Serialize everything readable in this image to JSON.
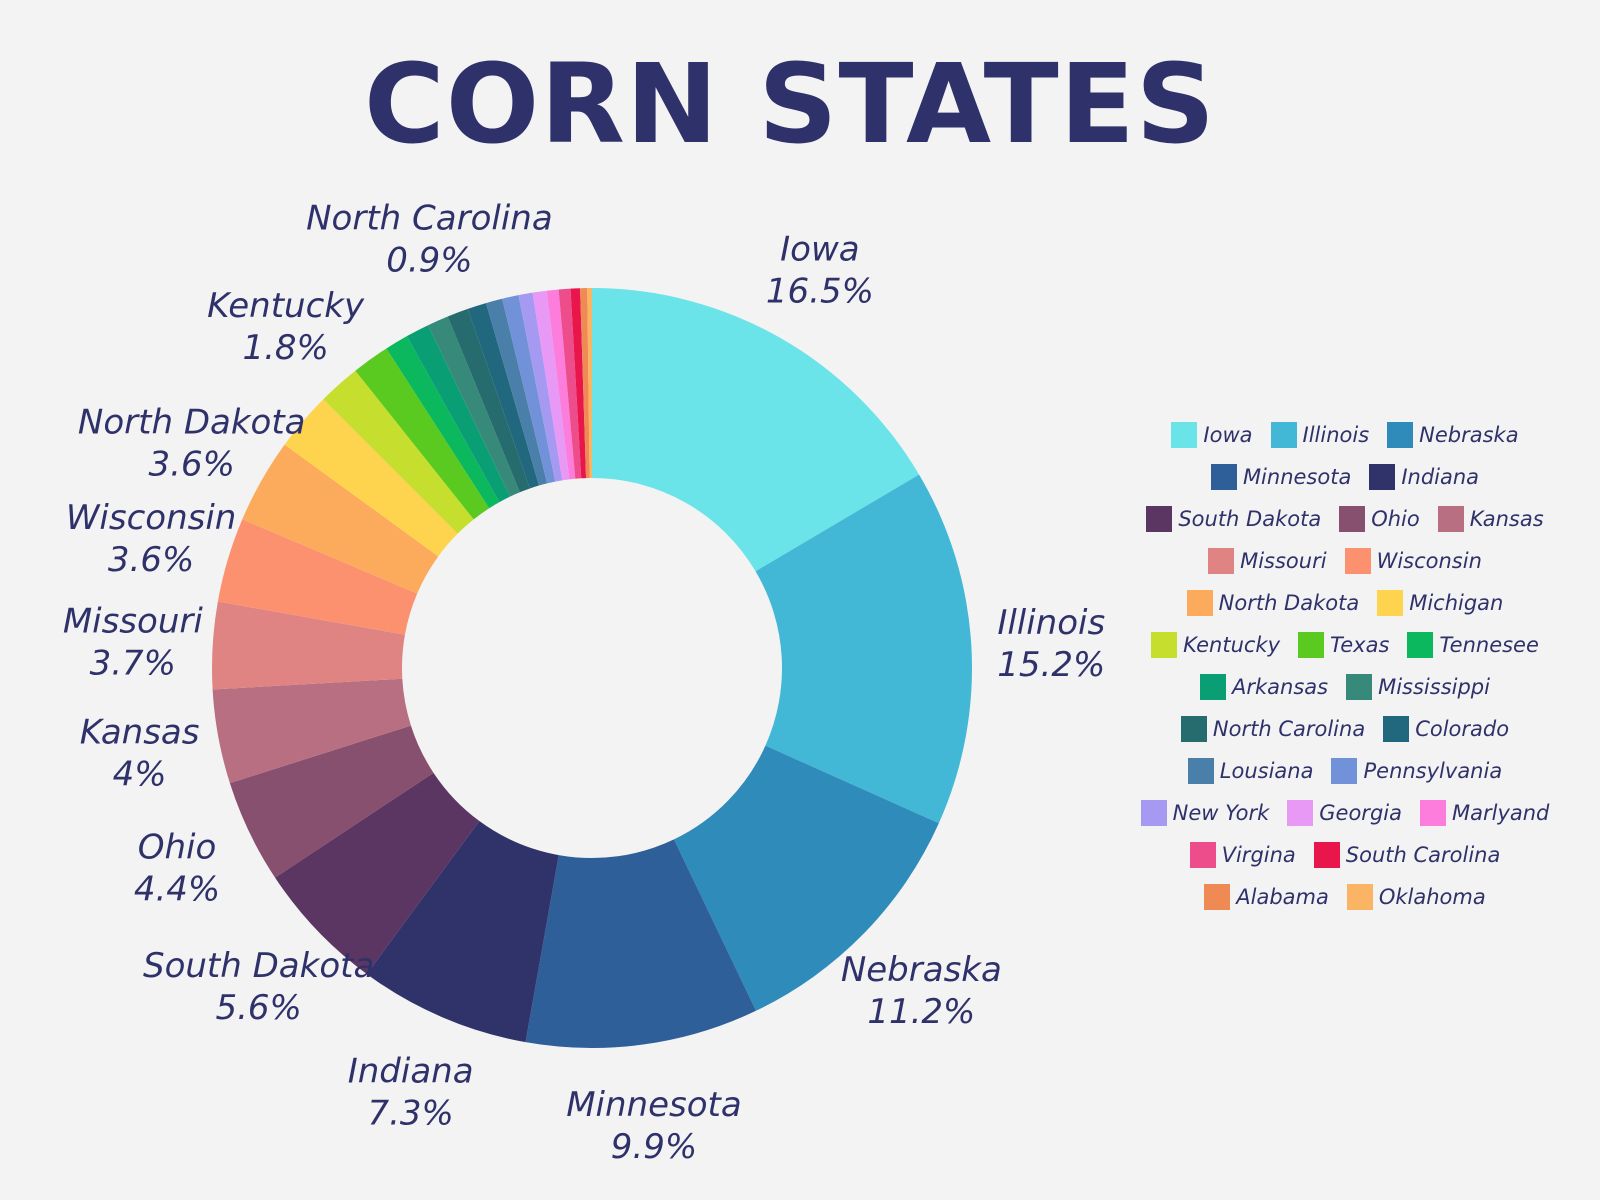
{
  "chart_data": {
    "type": "pie",
    "title": "CORN STATES",
    "legend_position": "right",
    "slices": [
      {
        "name": "Iowa",
        "value": 16.5,
        "color": "#6ae4e8",
        "label": "16.5%"
      },
      {
        "name": "Illinois",
        "value": 15.2,
        "color": "#42b8d6",
        "label": "15.2%"
      },
      {
        "name": "Nebraska",
        "value": 11.2,
        "color": "#2e8bba",
        "label": "11.2%"
      },
      {
        "name": "Minnesota",
        "value": 9.9,
        "color": "#2e5f98",
        "label": "9.9%"
      },
      {
        "name": "Indiana",
        "value": 7.3,
        "color": "#2f336a",
        "label": "7.3%"
      },
      {
        "name": "South Dakota",
        "value": 5.6,
        "color": "#5c3663",
        "label": "5.6%"
      },
      {
        "name": "Ohio",
        "value": 4.4,
        "color": "#87506e",
        "label": "4.4%"
      },
      {
        "name": "Kansas",
        "value": 4.0,
        "color": "#b96f82",
        "label": "4%"
      },
      {
        "name": "Missouri",
        "value": 3.7,
        "color": "#e08383",
        "label": "3.7%"
      },
      {
        "name": "Wisconsin",
        "value": 3.6,
        "color": "#fc9170",
        "label": "3.6%"
      },
      {
        "name": "North Dakota",
        "value": 3.6,
        "color": "#fcab5c",
        "label": "3.6%"
      },
      {
        "name": "Michigan",
        "value": 2.5,
        "color": "#fed44f",
        "label": ""
      },
      {
        "name": "Kentucky",
        "value": 1.8,
        "color": "#c6de2e",
        "label": "1.8%"
      },
      {
        "name": "Texas",
        "value": 1.6,
        "color": "#5ac920",
        "label": ""
      },
      {
        "name": "Tennesee",
        "value": 1.0,
        "color": "#0bb85e",
        "label": ""
      },
      {
        "name": "Arkansas",
        "value": 1.0,
        "color": "#0a9e74",
        "label": ""
      },
      {
        "name": "Mississippi",
        "value": 0.9,
        "color": "#378a7a",
        "label": ""
      },
      {
        "name": "North Carolina",
        "value": 0.9,
        "color": "#266b6d",
        "label": "0.9%"
      },
      {
        "name": "Colorado",
        "value": 0.8,
        "color": "#21687e",
        "label": ""
      },
      {
        "name": "Lousiana",
        "value": 0.7,
        "color": "#4a7fa9",
        "label": ""
      },
      {
        "name": "Pennsylvania",
        "value": 0.7,
        "color": "#7191d8",
        "label": ""
      },
      {
        "name": "New York",
        "value": 0.6,
        "color": "#a699f2",
        "label": ""
      },
      {
        "name": "Georgia",
        "value": 0.6,
        "color": "#e899f5",
        "label": ""
      },
      {
        "name": "Marlyand",
        "value": 0.5,
        "color": "#fc7ddc",
        "label": ""
      },
      {
        "name": "Virgina",
        "value": 0.5,
        "color": "#ee4d8c",
        "label": ""
      },
      {
        "name": "South Carolina",
        "value": 0.4,
        "color": "#e8164a",
        "label": ""
      },
      {
        "name": "Alabama",
        "value": 0.3,
        "color": "#f08a55",
        "label": ""
      },
      {
        "name": "Oklahoma",
        "value": 0.2,
        "color": "#fbb464",
        "label": ""
      }
    ]
  }
}
